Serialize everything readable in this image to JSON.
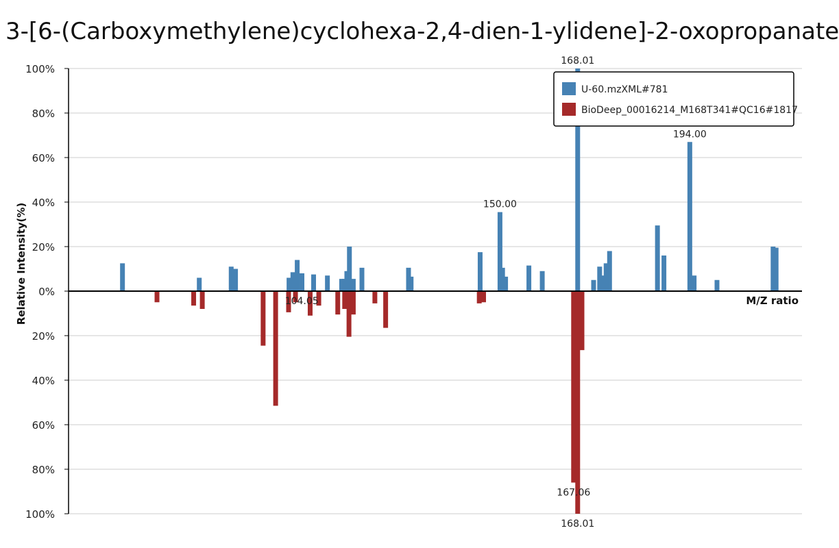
{
  "chart_data": {
    "type": "bar",
    "title": "3-[6-(Carboxymethylene)cyclohexa-2,4-dien-1-ylidene]-2-oxopropanate",
    "xlabel": "M/Z ratio",
    "ylabel": "Relative Intensity(%)",
    "xlim": [
      50,
      220
    ],
    "yticks_top": [
      "100%",
      "80%",
      "60%",
      "40%",
      "20%",
      "0%"
    ],
    "yticks_bottom": [
      "20%",
      "40%",
      "60%",
      "80%",
      "100%"
    ],
    "grid": true,
    "legend_position": "top-right",
    "colors": {
      "query": "#4682b4",
      "reference": "#a52a2a"
    },
    "series": [
      {
        "name": "U-60.mzXML#781",
        "direction": "up",
        "x": [
          62.5,
          80.3,
          87.7,
          88.7,
          101.1,
          102.0,
          103.0,
          104.1,
          106.8,
          110.0,
          113.3,
          113.9,
          114.5,
          115.1,
          116.0,
          118.0,
          128.8,
          129.4,
          130.3,
          130.9,
          131.6,
          132.1,
          150.0,
          150.6,
          151.3,
          145.4,
          145.1,
          156.7,
          159.8,
          168.01,
          171.7,
          173.1,
          173.9,
          174.6,
          175.4,
          186.5,
          188.0,
          194.0,
          195.0,
          200.3,
          213.3,
          214.0
        ],
        "values": [
          12.5,
          6,
          11,
          10,
          6,
          8.5,
          14,
          8,
          7.5,
          7,
          5.5,
          5.5,
          9,
          20,
          5.5,
          10.5,
          10.5,
          6.5,
          0,
          0,
          0,
          0,
          35.5,
          10.5,
          6.5,
          17.5,
          0,
          11.5,
          9,
          100,
          5,
          11,
          7,
          12.5,
          18,
          29.5,
          16,
          67,
          7,
          5,
          20,
          19.5
        ],
        "labels": [
          {
            "x": 150.0,
            "text": "150.00"
          },
          {
            "x": 168.01,
            "text": "168.01"
          },
          {
            "x": 194.0,
            "text": "194.00"
          }
        ]
      },
      {
        "name": "BioDeep_00016214_M168T341#QC16#1817",
        "direction": "down",
        "x": [
          70.5,
          79.0,
          81.0,
          95.1,
          98.0,
          101.0,
          102.6,
          106.0,
          108.0,
          112.4,
          114.0,
          115.0,
          116.0,
          121.0,
          123.5,
          145.2,
          146.2,
          167.06,
          168.01,
          169.0
        ],
        "values": [
          5,
          6.5,
          8,
          24.5,
          51.5,
          9.5,
          5,
          11,
          6.5,
          10.5,
          8,
          20.5,
          10.5,
          5.5,
          16.5,
          5.5,
          5,
          86,
          100,
          26.5
        ],
        "labels": [
          {
            "x": 104.05,
            "text": "104.05"
          },
          {
            "x": 167.06,
            "text": "167.06"
          },
          {
            "x": 168.01,
            "text": "168.01"
          }
        ]
      }
    ]
  }
}
